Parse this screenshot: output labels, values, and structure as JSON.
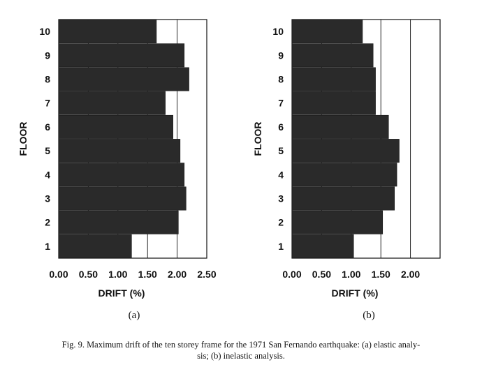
{
  "chart_data": [
    {
      "type": "bar",
      "orientation": "horizontal",
      "panel_label": "(a)",
      "xlabel": "DRIFT (%)",
      "ylabel": "FLOOR",
      "xlim": [
        0,
        2.5
      ],
      "xticks": [
        "0.00",
        "0.50",
        "1.00",
        "1.50",
        "2.00",
        "2.50"
      ],
      "grid": "vertical",
      "categories": [
        "1",
        "2",
        "3",
        "4",
        "5",
        "6",
        "7",
        "8",
        "9",
        "10"
      ],
      "values": [
        1.23,
        2.02,
        2.15,
        2.12,
        2.05,
        1.93,
        1.8,
        2.2,
        2.12,
        1.65
      ]
    },
    {
      "type": "bar",
      "orientation": "horizontal",
      "panel_label": "(b)",
      "xlabel": "DRIFT (%)",
      "ylabel": "FLOOR",
      "xlim": [
        0,
        2.5
      ],
      "xticks": [
        "0.00",
        "0.50",
        "1.00",
        "1.50",
        "2.00"
      ],
      "grid": "vertical",
      "categories": [
        "1",
        "2",
        "3",
        "4",
        "5",
        "6",
        "7",
        "8",
        "9",
        "10"
      ],
      "values": [
        1.04,
        1.53,
        1.73,
        1.77,
        1.81,
        1.63,
        1.41,
        1.41,
        1.37,
        1.19
      ]
    }
  ],
  "caption": {
    "line1": "Fig. 9. Maximum drift of the ten storey frame for the 1971 San Fernando earthquake: (a) elastic analy-",
    "line2": "sis; (b) inelastic analysis."
  },
  "colors": {
    "bar": "#2a2a2a",
    "axis": "#111111",
    "background": "#ffffff"
  }
}
